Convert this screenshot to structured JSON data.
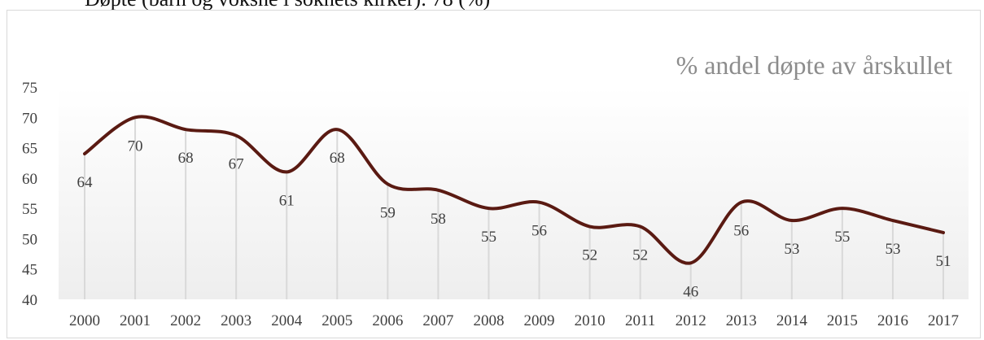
{
  "page": {
    "heading": "Døpte (barn og voksne i soknets kirker): 78 (%)"
  },
  "chart_data": {
    "type": "line",
    "title": "% andel døpte av årskullet",
    "xlabel": "",
    "ylabel": "",
    "categories": [
      "2000",
      "2001",
      "2002",
      "2003",
      "2004",
      "2005",
      "2006",
      "2007",
      "2008",
      "2009",
      "2010",
      "2011",
      "2012",
      "2013",
      "2014",
      "2015",
      "2016",
      "2017"
    ],
    "series": [
      {
        "values": [
          64,
          70,
          68,
          67,
          61,
          68,
          59,
          58,
          55,
          56,
          52,
          52,
          46,
          56,
          53,
          55,
          53,
          51
        ]
      }
    ],
    "ylim": [
      40,
      75
    ],
    "yticks": [
      40,
      45,
      50,
      55,
      60,
      65,
      70,
      75
    ],
    "vertical_drop_lines": true,
    "smooth": true,
    "line_color": "#5a1a12",
    "drop_line_color": "#d9d9d9",
    "plot_gradient": [
      "#ffffff",
      "#eeeeee"
    ]
  }
}
